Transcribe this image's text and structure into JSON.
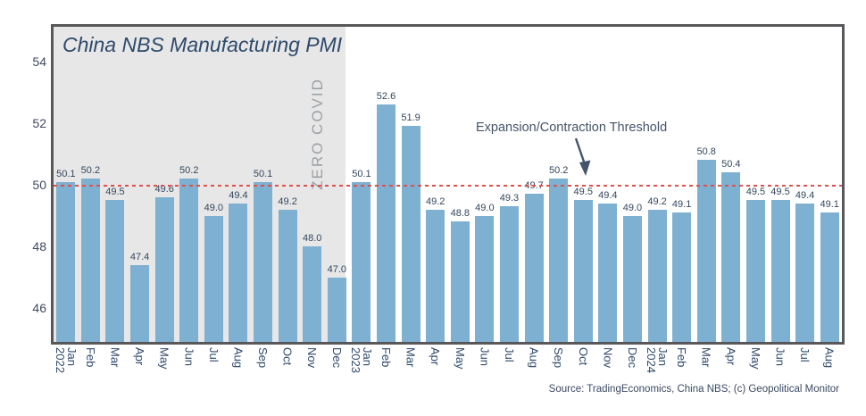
{
  "chart_data": {
    "type": "bar",
    "title": "China NBS Manufacturing PMI",
    "source": "Source: TradingEconomics, China NBS; (c) Geopolitical Monitor",
    "x_labels": [
      {
        "month": "Jan",
        "year": "2022"
      },
      {
        "month": "Feb"
      },
      {
        "month": "Mar"
      },
      {
        "month": "Apr"
      },
      {
        "month": "May"
      },
      {
        "month": "Jun"
      },
      {
        "month": "Jul"
      },
      {
        "month": "Aug"
      },
      {
        "month": "Sep"
      },
      {
        "month": "Oct"
      },
      {
        "month": "Nov"
      },
      {
        "month": "Dec"
      },
      {
        "month": "Jan",
        "year": "2023"
      },
      {
        "month": "Feb"
      },
      {
        "month": "Mar"
      },
      {
        "month": "Apr"
      },
      {
        "month": "May"
      },
      {
        "month": "Jun"
      },
      {
        "month": "Jul"
      },
      {
        "month": "Aug"
      },
      {
        "month": "Sep"
      },
      {
        "month": "Oct"
      },
      {
        "month": "Nov"
      },
      {
        "month": "Dec"
      },
      {
        "month": "Jan",
        "year": "2024"
      },
      {
        "month": "Feb"
      },
      {
        "month": "Mar"
      },
      {
        "month": "Apr"
      },
      {
        "month": "May"
      },
      {
        "month": "Jun"
      },
      {
        "month": "Jul"
      },
      {
        "month": "Aug"
      }
    ],
    "values": [
      50.1,
      50.2,
      49.5,
      47.4,
      49.6,
      50.2,
      49.0,
      49.4,
      50.1,
      49.2,
      48.0,
      47.0,
      50.1,
      52.6,
      51.9,
      49.2,
      48.8,
      49.0,
      49.3,
      49.7,
      50.2,
      49.5,
      49.4,
      49.0,
      49.2,
      49.1,
      50.8,
      50.4,
      49.5,
      49.5,
      49.4,
      49.1
    ],
    "y_ticks": [
      46,
      48,
      50,
      52,
      54
    ],
    "ylim": [
      44.9,
      55.1
    ],
    "threshold": {
      "value": 50,
      "label": "Expansion/Contraction Threshold"
    },
    "shaded_region": {
      "label": "ZERO COVID",
      "span_bars": 12
    },
    "grid": false,
    "legend": "none",
    "colors": {
      "bar": "#7eb0d2",
      "threshold_line": "#df4f4b",
      "shaded_region": "#e7e7e7",
      "title_text": "#2e4a6b",
      "region_label_text": "#9ba1a6",
      "annotation_text": "#44546a",
      "axis_border": "#58585b"
    }
  }
}
